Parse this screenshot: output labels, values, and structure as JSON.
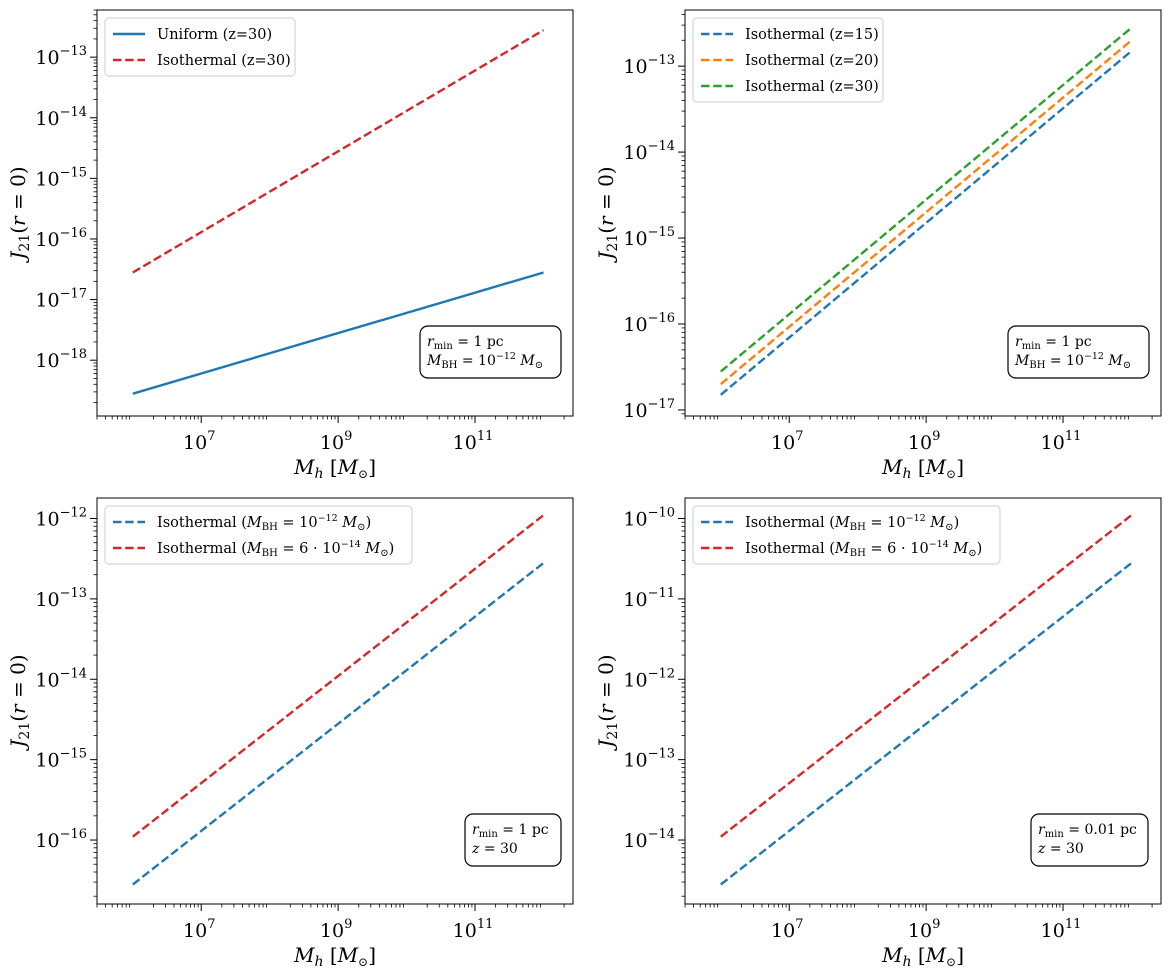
{
  "figure_title": "",
  "chart_data": [
    {
      "id": "top-left",
      "type": "line",
      "xscale": "log",
      "yscale": "log",
      "xlim": [
        300000.0,
        2700000000000.0
      ],
      "ylim": [
        1.2e-19,
        6e-13
      ],
      "xticks": [
        {
          "value": 10000000.0,
          "base": "10",
          "exp": "7"
        },
        {
          "value": 1000000000.0,
          "base": "10",
          "exp": "9"
        },
        {
          "value": 100000000000.0,
          "base": "10",
          "exp": "11"
        }
      ],
      "yticks": [
        {
          "value": 1e-18,
          "base": "10",
          "exp": "−18"
        },
        {
          "value": 1e-17,
          "base": "10",
          "exp": "−17"
        },
        {
          "value": 1e-16,
          "base": "10",
          "exp": "−16"
        },
        {
          "value": 1e-15,
          "base": "10",
          "exp": "−15"
        },
        {
          "value": 1e-14,
          "base": "10",
          "exp": "−14"
        },
        {
          "value": 1e-13,
          "base": "10",
          "exp": "−13"
        }
      ],
      "xlabel": {
        "main": "M",
        "sub": "h",
        "unit": "[M",
        "unit_sub": "⊙",
        "close": "]"
      },
      "ylabel": {
        "main": "J",
        "sub": "21",
        "arg": "(r = 0)"
      },
      "legend_position": "top-left",
      "series": [
        {
          "name": "Uniform (z=30)",
          "color": "#1f77b4",
          "style": "solid",
          "x": [
            1000000.0,
            1000000000000.0
          ],
          "y": [
            2.8e-19,
            2.8e-17
          ]
        },
        {
          "name": "Isothermal (z=30)",
          "color": "#d62728",
          "style": "dashed",
          "x": [
            1000000.0,
            1000000000000.0
          ],
          "y": [
            2.8e-17,
            2.8e-13
          ]
        }
      ],
      "annotation": {
        "line1": "r",
        "line1_sub": "min",
        "line1_rest": " = 1 pc",
        "line2": "M",
        "line2_sub": "BH",
        "line2_rest": " = 10",
        "line2_sup": "−12",
        "line2_end": " M",
        "line2_end_sub": "⊙"
      }
    },
    {
      "id": "top-right",
      "type": "line",
      "xscale": "log",
      "yscale": "log",
      "xlim": [
        300000.0,
        2700000000000.0
      ],
      "ylim": [
        8.5e-18,
        4.5e-13
      ],
      "xticks": [
        {
          "value": 10000000.0,
          "base": "10",
          "exp": "7"
        },
        {
          "value": 1000000000.0,
          "base": "10",
          "exp": "9"
        },
        {
          "value": 100000000000.0,
          "base": "10",
          "exp": "11"
        }
      ],
      "yticks": [
        {
          "value": 1e-17,
          "base": "10",
          "exp": "−17"
        },
        {
          "value": 1e-16,
          "base": "10",
          "exp": "−16"
        },
        {
          "value": 1e-15,
          "base": "10",
          "exp": "−15"
        },
        {
          "value": 1e-14,
          "base": "10",
          "exp": "−14"
        },
        {
          "value": 1e-13,
          "base": "10",
          "exp": "−13"
        }
      ],
      "xlabel": {
        "main": "M",
        "sub": "h",
        "unit": "[M",
        "unit_sub": "⊙",
        "close": "]"
      },
      "ylabel": {
        "main": "J",
        "sub": "21",
        "arg": "(r = 0)"
      },
      "legend_position": "top-left",
      "series": [
        {
          "name": "Isothermal (z=15)",
          "color": "#1f77b4",
          "style": "dashed",
          "x": [
            1000000.0,
            1000000000000.0
          ],
          "y": [
            1.5e-17,
            1.5e-13
          ]
        },
        {
          "name": "Isothermal (z=20)",
          "color": "#ff7f0e",
          "style": "dashed",
          "x": [
            1000000.0,
            1000000000000.0
          ],
          "y": [
            2e-17,
            2e-13
          ]
        },
        {
          "name": "Isothermal (z=30)",
          "color": "#2ca02c",
          "style": "dashed",
          "x": [
            1000000.0,
            1000000000000.0
          ],
          "y": [
            2.8e-17,
            2.8e-13
          ]
        }
      ],
      "annotation": {
        "line1": "r",
        "line1_sub": "min",
        "line1_rest": " = 1 pc",
        "line2": "M",
        "line2_sub": "BH",
        "line2_rest": " = 10",
        "line2_sup": "−12",
        "line2_end": " M",
        "line2_end_sub": "⊙"
      }
    },
    {
      "id": "bottom-left",
      "type": "line",
      "xscale": "log",
      "yscale": "log",
      "xlim": [
        300000.0,
        2700000000000.0
      ],
      "ylim": [
        1.6e-17,
        1.8e-12
      ],
      "xticks": [
        {
          "value": 10000000.0,
          "base": "10",
          "exp": "7"
        },
        {
          "value": 1000000000.0,
          "base": "10",
          "exp": "9"
        },
        {
          "value": 100000000000.0,
          "base": "10",
          "exp": "11"
        }
      ],
      "yticks": [
        {
          "value": 1e-16,
          "base": "10",
          "exp": "−16"
        },
        {
          "value": 1e-15,
          "base": "10",
          "exp": "−15"
        },
        {
          "value": 1e-14,
          "base": "10",
          "exp": "−14"
        },
        {
          "value": 1e-13,
          "base": "10",
          "exp": "−13"
        },
        {
          "value": 1e-12,
          "base": "10",
          "exp": "−12"
        }
      ],
      "xlabel": {
        "main": "M",
        "sub": "h",
        "unit": "[M",
        "unit_sub": "⊙",
        "close": "]"
      },
      "ylabel": {
        "main": "J",
        "sub": "21",
        "arg": "(r = 0)"
      },
      "legend_position": "top-left",
      "series": [
        {
          "name": "Isothermal (M_BH = 10^-12 M_sun)",
          "label_parts": {
            "pre": "Isothermal (",
            "m": "M",
            "sub": "BH",
            "mid": " = 10",
            "sup": "−12",
            "end": " M",
            "end_sub": "⊙",
            "close": ")"
          },
          "color": "#1f77b4",
          "style": "dashed",
          "x": [
            1000000.0,
            1000000000000.0
          ],
          "y": [
            2.8e-17,
            2.8e-13
          ]
        },
        {
          "name": "Isothermal (M_BH = 6·10^-14 M_sun)",
          "label_parts": {
            "pre": "Isothermal (",
            "m": "M",
            "sub": "BH",
            "mid": " = 6 · 10",
            "sup": "−14",
            "end": " M",
            "end_sub": "⊙",
            "close": ")"
          },
          "color": "#d62728",
          "style": "dashed",
          "x": [
            1000000.0,
            1000000000000.0
          ],
          "y": [
            1.1e-16,
            1.1e-12
          ]
        }
      ],
      "annotation": {
        "line1": "r",
        "line1_sub": "min",
        "line1_rest": " = 1 pc",
        "line2": "z",
        "line2_sub": "",
        "line2_rest": " = 30",
        "line2_sup": "",
        "line2_end": "",
        "line2_end_sub": ""
      }
    },
    {
      "id": "bottom-right",
      "type": "line",
      "xscale": "log",
      "yscale": "log",
      "xlim": [
        300000.0,
        2700000000000.0
      ],
      "ylim": [
        1.6e-15,
        1.8e-10
      ],
      "xticks": [
        {
          "value": 10000000.0,
          "base": "10",
          "exp": "7"
        },
        {
          "value": 1000000000.0,
          "base": "10",
          "exp": "9"
        },
        {
          "value": 100000000000.0,
          "base": "10",
          "exp": "11"
        }
      ],
      "yticks": [
        {
          "value": 1e-14,
          "base": "10",
          "exp": "−14"
        },
        {
          "value": 1e-13,
          "base": "10",
          "exp": "−13"
        },
        {
          "value": 1e-12,
          "base": "10",
          "exp": "−12"
        },
        {
          "value": 1e-11,
          "base": "10",
          "exp": "−11"
        },
        {
          "value": 1e-10,
          "base": "10",
          "exp": "−10"
        }
      ],
      "xlabel": {
        "main": "M",
        "sub": "h",
        "unit": "[M",
        "unit_sub": "⊙",
        "close": "]"
      },
      "ylabel": {
        "main": "J",
        "sub": "21",
        "arg": "(r = 0)"
      },
      "legend_position": "top-left",
      "series": [
        {
          "name": "Isothermal (M_BH = 10^-12 M_sun)",
          "label_parts": {
            "pre": "Isothermal (",
            "m": "M",
            "sub": "BH",
            "mid": " = 10",
            "sup": "−12",
            "end": " M",
            "end_sub": "⊙",
            "close": ")"
          },
          "color": "#1f77b4",
          "style": "dashed",
          "x": [
            1000000.0,
            1000000000000.0
          ],
          "y": [
            2.8e-15,
            2.8e-11
          ]
        },
        {
          "name": "Isothermal (M_BH = 6·10^-14 M_sun)",
          "label_parts": {
            "pre": "Isothermal (",
            "m": "M",
            "sub": "BH",
            "mid": " = 6 · 10",
            "sup": "−14",
            "end": " M",
            "end_sub": "⊙",
            "close": ")"
          },
          "color": "#d62728",
          "style": "dashed",
          "x": [
            1000000.0,
            1000000000000.0
          ],
          "y": [
            1.1e-14,
            1.1e-10
          ]
        }
      ],
      "annotation": {
        "line1": "r",
        "line1_sub": "min",
        "line1_rest": " = 0.01 pc",
        "line2": "z",
        "line2_sub": "",
        "line2_rest": " = 30",
        "line2_sup": "",
        "line2_end": "",
        "line2_end_sub": ""
      }
    }
  ]
}
